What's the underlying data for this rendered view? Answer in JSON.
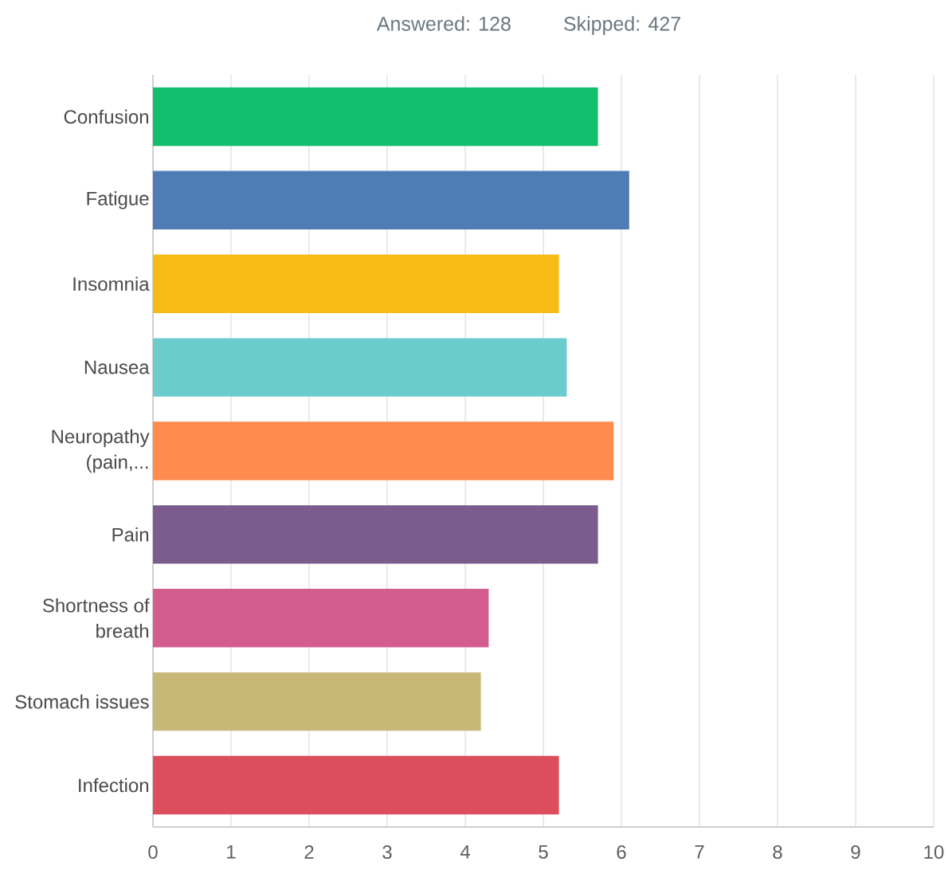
{
  "chart_data": {
    "type": "bar",
    "orientation": "horizontal",
    "annotations": [
      "Answered: 128",
      "Skipped: 427"
    ],
    "categories": [
      "Confusion",
      "Fatigue",
      "Insomnia",
      "Nausea",
      "Neuropathy (pain,...",
      "Pain",
      "Shortness of breath",
      "Stomach issues",
      "Infection"
    ],
    "values": [
      5.7,
      6.1,
      5.2,
      5.3,
      5.9,
      5.7,
      4.3,
      4.2,
      5.2
    ],
    "colors": [
      "#13bf6e",
      "#507cb6",
      "#f8bb16",
      "#6ccbcd",
      "#ff8b4f",
      "#7b5c8d",
      "#d35d8e",
      "#c7b878",
      "#dc4e5c"
    ],
    "xlim": [
      0,
      10
    ],
    "xticks": [
      0,
      1,
      2,
      3,
      4,
      5,
      6,
      7,
      8,
      9,
      10
    ],
    "grid": "x"
  }
}
